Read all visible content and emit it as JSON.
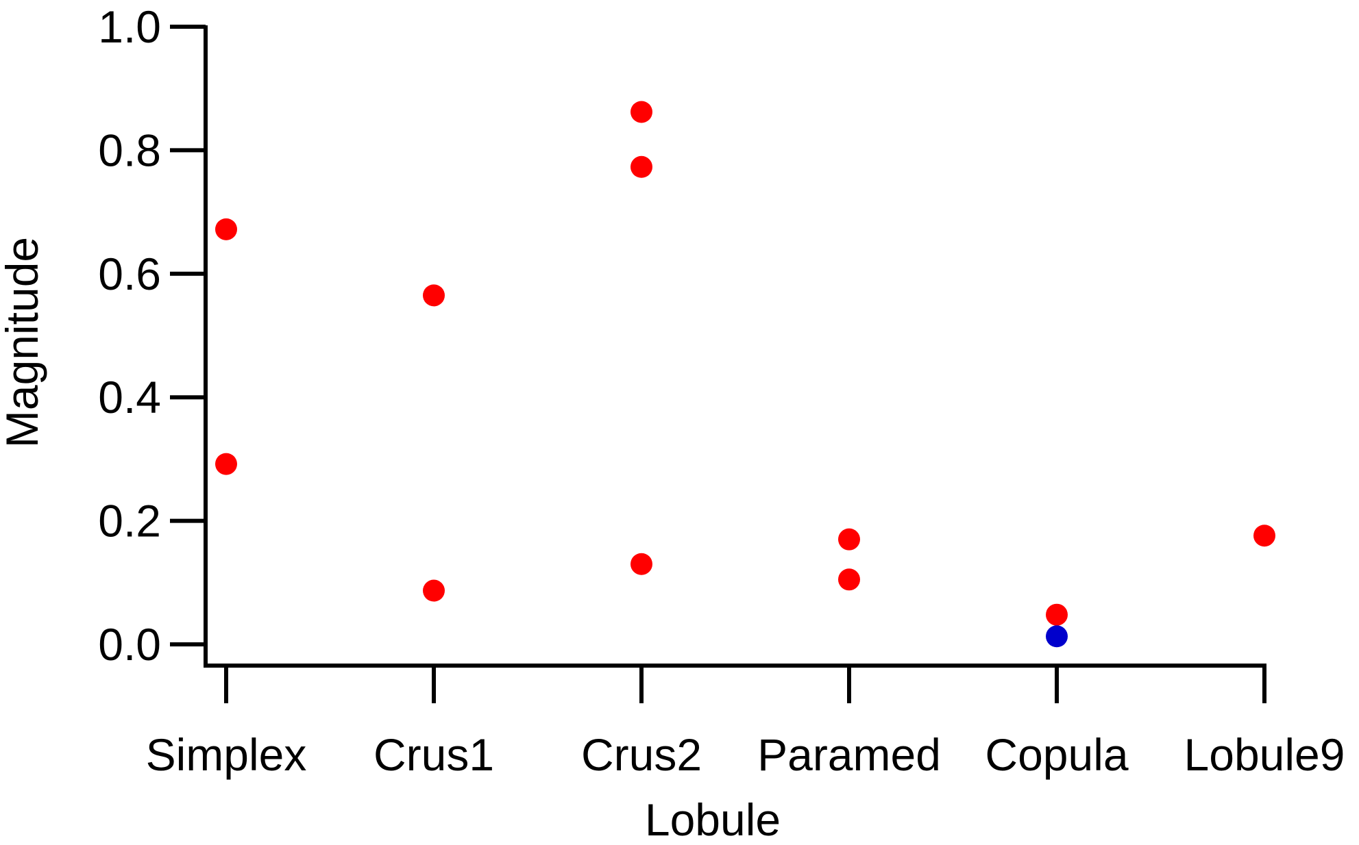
{
  "chart_data": {
    "type": "scatter",
    "xlabel": "Lobule",
    "ylabel": "Magnitude",
    "categories": [
      "Simplex",
      "Crus1",
      "Crus2",
      "Paramed",
      "Copula",
      "Lobule9"
    ],
    "ylim": [
      0.0,
      1.0
    ],
    "yticks": [
      "0.0",
      "0.2",
      "0.4",
      "0.6",
      "0.8",
      "1.0"
    ],
    "grid": false,
    "points": [
      {
        "x": "Simplex",
        "y": 0.672,
        "color": "#ff0000"
      },
      {
        "x": "Simplex",
        "y": 0.292,
        "color": "#ff0000"
      },
      {
        "x": "Crus1",
        "y": 0.565,
        "color": "#ff0000"
      },
      {
        "x": "Crus1",
        "y": 0.087,
        "color": "#ff0000"
      },
      {
        "x": "Crus2",
        "y": 0.862,
        "color": "#ff0000"
      },
      {
        "x": "Crus2",
        "y": 0.773,
        "color": "#ff0000"
      },
      {
        "x": "Crus2",
        "y": 0.13,
        "color": "#ff0000"
      },
      {
        "x": "Paramed",
        "y": 0.17,
        "color": "#ff0000"
      },
      {
        "x": "Paramed",
        "y": 0.105,
        "color": "#ff0000"
      },
      {
        "x": "Copula",
        "y": 0.048,
        "color": "#ff0000"
      },
      {
        "x": "Copula",
        "y": 0.013,
        "color": "#0000cc"
      },
      {
        "x": "Lobule9",
        "y": 0.176,
        "color": "#ff0000"
      }
    ]
  }
}
